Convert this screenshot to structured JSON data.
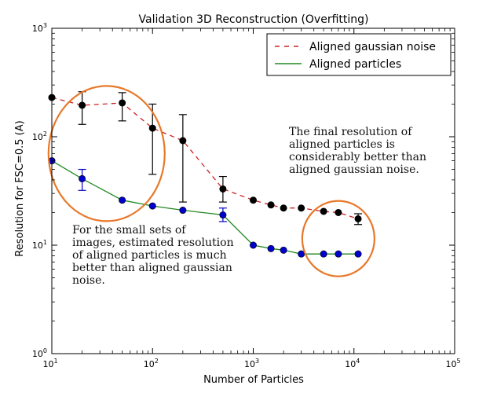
{
  "chart_data": {
    "type": "line",
    "title": "Validation 3D Reconstruction (Overfitting)",
    "xlabel": "Number of Particles",
    "ylabel": "Resolution for FSC=0.5 (A)",
    "xscale": "log",
    "yscale": "log",
    "xlim": [
      10,
      100000
    ],
    "ylim": [
      1,
      1000
    ],
    "xticks": [
      {
        "value": 10,
        "base": "10",
        "exp": "1"
      },
      {
        "value": 100,
        "base": "10",
        "exp": "2"
      },
      {
        "value": 1000,
        "base": "10",
        "exp": "3"
      },
      {
        "value": 10000,
        "base": "10",
        "exp": "4"
      },
      {
        "value": 100000,
        "base": "10",
        "exp": "5"
      }
    ],
    "yticks": [
      {
        "value": 1,
        "base": "10",
        "exp": "0"
      },
      {
        "value": 10,
        "base": "10",
        "exp": "1"
      },
      {
        "value": 100,
        "base": "10",
        "exp": "2"
      },
      {
        "value": 1000,
        "base": "10",
        "exp": "3"
      }
    ],
    "grid": false,
    "legend_position": "top-right",
    "series": [
      {
        "name": "Aligned gaussian noise",
        "color": "#cc2222",
        "line_style": "dashed",
        "marker_color": "#000000",
        "x": [
          10,
          20,
          50,
          100,
          200,
          500,
          1000,
          1500,
          2000,
          3000,
          5000,
          7000,
          11000
        ],
        "y": [
          230,
          195,
          205,
          120,
          92,
          33,
          26,
          23.5,
          22,
          22,
          20.5,
          20,
          17.5
        ],
        "err_low": [
          null,
          130,
          140,
          45,
          25,
          25,
          null,
          null,
          null,
          null,
          null,
          null,
          15.5
        ],
        "err_high": [
          null,
          260,
          255,
          200,
          160,
          43,
          null,
          null,
          null,
          null,
          null,
          null,
          19.5
        ]
      },
      {
        "name": "Aligned particles",
        "color": "#228822",
        "line_style": "solid",
        "marker_color": "#0000cc",
        "x": [
          10,
          20,
          50,
          100,
          200,
          500,
          1000,
          1500,
          2000,
          3000,
          5000,
          7000,
          11000
        ],
        "y": [
          60,
          41,
          26,
          23,
          21,
          19,
          10,
          9.3,
          9,
          8.3,
          8.3,
          8.3,
          8.3
        ],
        "err_low": [
          null,
          32,
          null,
          null,
          null,
          16.5,
          null,
          null,
          null,
          null,
          null,
          null,
          null
        ],
        "err_high": [
          null,
          50,
          null,
          null,
          null,
          22,
          null,
          null,
          null,
          null,
          null,
          null,
          null
        ]
      }
    ],
    "annotations": [
      {
        "text": "For the small sets of\nimages, estimated resolution\nof aligned particles is much\nbetter than aligned gaussian\nnoise.",
        "highlight_color": "#e8782a"
      },
      {
        "text": "The final resolution of\naligned particles is\nconsiderably better than\naligned gaussian noise.",
        "highlight_color": "#e8782a"
      }
    ]
  }
}
